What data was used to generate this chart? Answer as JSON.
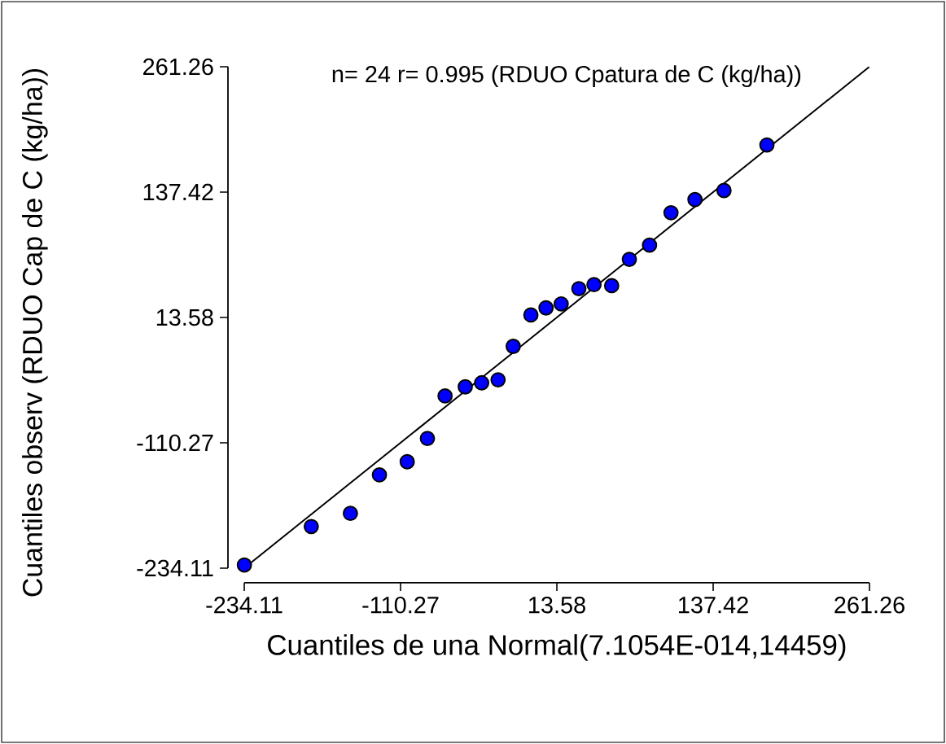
{
  "chart_data": {
    "type": "scatter",
    "title": "n= 24 r= 0.995 (RDUO Cpatura de C (kg/ha))",
    "xlabel": "Cuantiles de una Normal(7.1054E-014,14459)",
    "ylabel": "Cuantiles observ (RDUO Cap de C (kg/ha))",
    "xlim": [
      -234.11,
      261.26
    ],
    "ylim": [
      -234.11,
      261.26
    ],
    "xticks": [
      -234.11,
      -110.27,
      13.58,
      137.42,
      261.26
    ],
    "yticks": [
      -234.11,
      -110.27,
      13.58,
      137.42,
      261.26
    ],
    "grid": false,
    "series": [
      {
        "marker": "circle",
        "color": "#0000ff",
        "x": [
          -234,
          -181,
          -150,
          -127,
          -105,
          -89,
          -75,
          -59,
          -46,
          -33,
          -21,
          -7,
          5,
          17,
          31,
          43,
          57,
          71,
          87,
          104,
          123,
          146,
          180
        ],
        "values": [
          -231,
          -193,
          -180,
          -142,
          -129,
          -106,
          -64,
          -55,
          -51,
          -48,
          -15,
          16,
          23,
          27,
          42,
          46,
          45,
          71,
          85,
          117,
          130,
          139,
          184
        ]
      },
      {
        "type": "line",
        "marker": "none",
        "color": "#000000",
        "x": [
          -234,
          261
        ],
        "values": [
          -234,
          261
        ]
      }
    ]
  }
}
